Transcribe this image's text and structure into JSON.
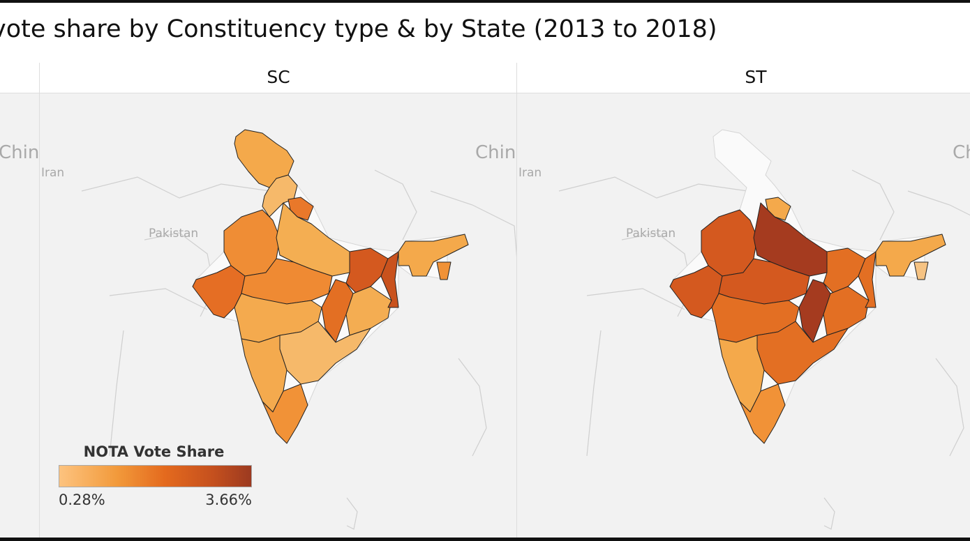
{
  "title": "vote share by Constituency type & by State (2013 to 2018)",
  "panels": [
    {
      "header": "",
      "labels": {
        "china": "Chin"
      }
    },
    {
      "header": "SC",
      "labels": {
        "china": "Chin",
        "iran": "Iran",
        "pakistan": "Pakistan"
      },
      "region_colors": [
        "#f4a94b",
        "#f6b96a",
        "#e9782a",
        "#ef8d35",
        "#e56e24",
        "#f4ae52",
        "#d4591f",
        "#ef8a33",
        "#e36f23",
        "#f4aa4e",
        "#f4ad52",
        "#c9521d",
        "#f6b96a",
        "#f4aa4e",
        "#f19237",
        "#f4a94b",
        "#f19237"
      ]
    },
    {
      "header": "ST",
      "labels": {
        "china": "Ch",
        "iran": "Iran",
        "pakistan": "Pakistan"
      },
      "region_colors": [
        null,
        null,
        "#f4a94b",
        "#d4591f",
        "#d4591f",
        "#a53b1f",
        "#e36f23",
        "#d4591f",
        "#a53b1f",
        "#e36f23",
        "#e36f23",
        "#e36f23",
        "#e36f23",
        "#f4a94b",
        "#f19237",
        "#f4a94b",
        "#f6c383"
      ]
    }
  ],
  "legend": {
    "title": "NOTA Vote Share",
    "min": "0.28%",
    "max": "3.66%",
    "color_low": "#fdc37f",
    "color_high": "#9c3a20"
  }
}
